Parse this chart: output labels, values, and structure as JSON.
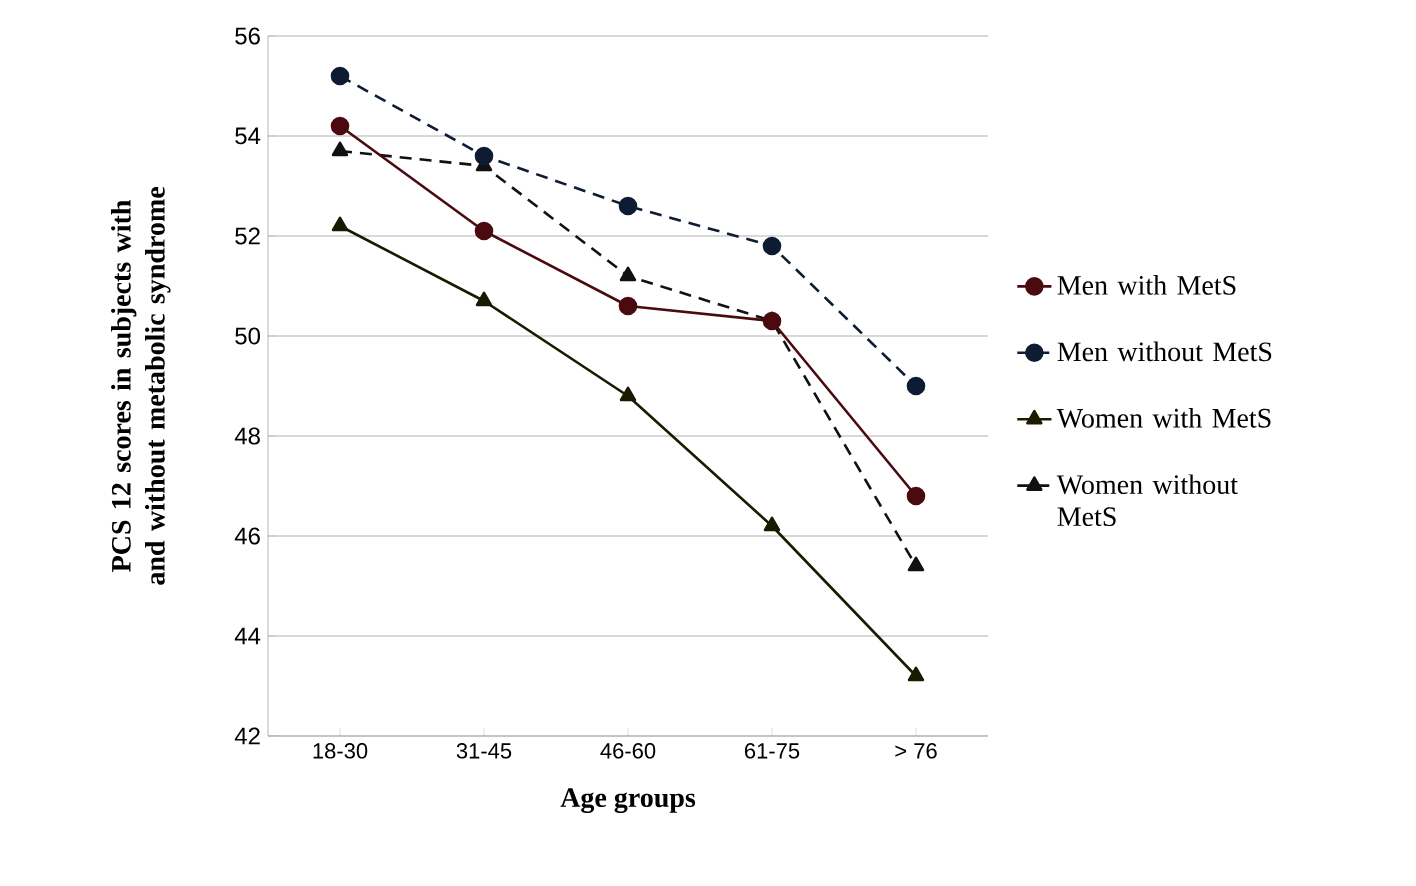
{
  "chart_data": {
    "type": "line",
    "xlabel": "Age groups",
    "ylabel": "PCS 12 scores in subjects with and without metabolic syndrome",
    "categories": [
      "18-30",
      "31-45",
      "46-60",
      "61-75",
      "> 76"
    ],
    "series": [
      {
        "name": "Men with MetS",
        "color": "#4a0a10",
        "marker": "circle",
        "line_style": "solid",
        "values": [
          54.2,
          52.1,
          50.6,
          50.3,
          46.8
        ]
      },
      {
        "name": "Men without MetS",
        "color": "#0d1b33",
        "marker": "circle",
        "line_style": "dashed",
        "values": [
          55.2,
          53.6,
          52.6,
          51.8,
          49.0
        ]
      },
      {
        "name": "Women with MetS",
        "color": "#1a1a00",
        "marker": "triangle",
        "line_style": "solid",
        "values": [
          52.2,
          50.7,
          48.8,
          46.2,
          43.2
        ]
      },
      {
        "name": "Women without MetS",
        "color": "#111111",
        "marker": "triangle",
        "line_style": "dashed",
        "values": [
          53.7,
          53.4,
          51.2,
          50.3,
          45.4
        ]
      }
    ],
    "ylim": [
      42,
      56
    ],
    "yticks": [
      42,
      44,
      46,
      48,
      50,
      52,
      54,
      56
    ],
    "grid": "y",
    "legend": "right"
  }
}
